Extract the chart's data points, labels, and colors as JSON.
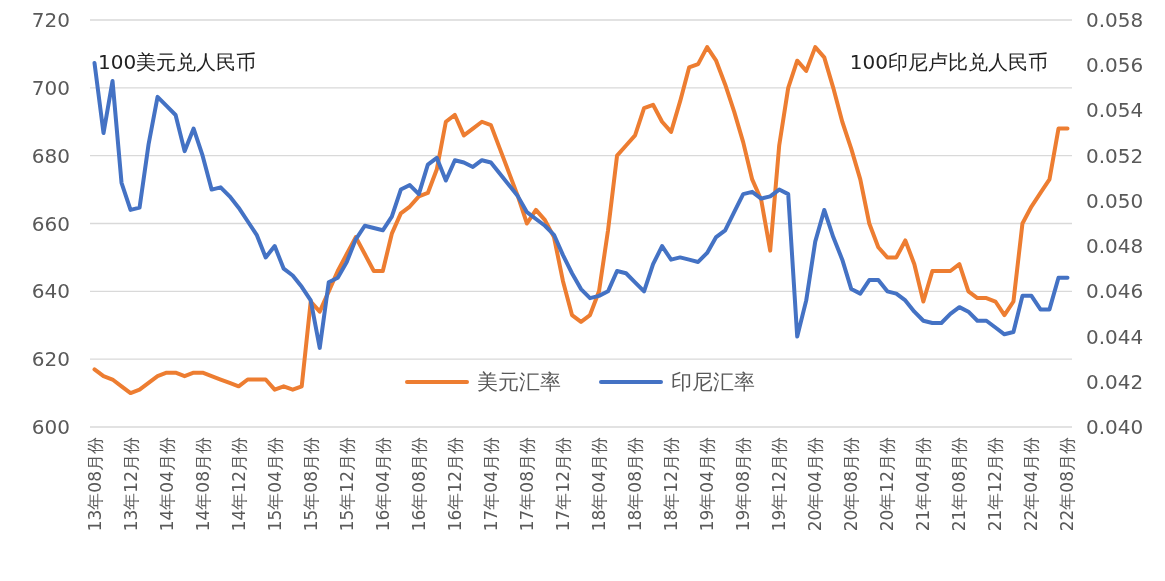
{
  "chart_data": {
    "type": "line",
    "categories": [
      "13年08月份",
      null,
      null,
      null,
      "13年12月份",
      null,
      null,
      null,
      "14年04月份",
      null,
      null,
      null,
      "14年08月份",
      null,
      null,
      null,
      "14年12月份",
      null,
      null,
      null,
      "15年04月份",
      null,
      null,
      null,
      "15年08月份",
      null,
      null,
      null,
      "15年12月份",
      null,
      null,
      null,
      "16年04月份",
      null,
      null,
      null,
      "16年08月份",
      null,
      null,
      null,
      "16年12月份",
      null,
      null,
      null,
      "17年04月份",
      null,
      null,
      null,
      "17年08月份",
      null,
      null,
      null,
      "17年12月份",
      null,
      null,
      null,
      "18年04月份",
      null,
      null,
      null,
      "18年08月份",
      null,
      null,
      null,
      "18年12月份",
      null,
      null,
      null,
      "19年04月份",
      null,
      null,
      null,
      "19年08月份",
      null,
      null,
      null,
      "19年12月份",
      null,
      null,
      null,
      "20年04月份",
      null,
      null,
      null,
      "20年08月份",
      null,
      null,
      null,
      "20年12月份",
      null,
      null,
      null,
      "21年04月份",
      null,
      null,
      null,
      "21年08月份",
      null,
      null,
      null,
      "21年12月份",
      null,
      null,
      null,
      "22年04月份",
      null,
      null,
      null,
      "22年08月份"
    ],
    "series": [
      {
        "name": "美元汇率",
        "color": "#ed7d31",
        "values": [
          617,
          615,
          614,
          612,
          610,
          611,
          613,
          615,
          616,
          616,
          615,
          616,
          616,
          615,
          614,
          613,
          612,
          614,
          614,
          614,
          611,
          612,
          611,
          612,
          637,
          634,
          640,
          646,
          651,
          656,
          651,
          646,
          646,
          657,
          663,
          665,
          668,
          669,
          676,
          690,
          692,
          686,
          688,
          690,
          689,
          682,
          675,
          668,
          660,
          664,
          661,
          656,
          643,
          633,
          631,
          633,
          640,
          658,
          680,
          683,
          686,
          694,
          695,
          690,
          687,
          696,
          706,
          707,
          712,
          708,
          701,
          693,
          684,
          673,
          667,
          652,
          683,
          700,
          708,
          705,
          712,
          709,
          700,
          690,
          682,
          673,
          660,
          653,
          650,
          650,
          655,
          648,
          637,
          646,
          646,
          646,
          648,
          640,
          638,
          638,
          637,
          633,
          637,
          660,
          665,
          669,
          673,
          688,
          688
        ]
      },
      {
        "name": "印尼汇率",
        "color": "#4472c4",
        "axis": "y2",
        "values": [
          0.0561,
          0.053,
          0.0553,
          0.0508,
          0.0496,
          0.0497,
          0.0525,
          0.0546,
          0.0542,
          0.0538,
          0.0522,
          0.0532,
          0.052,
          0.0505,
          0.0506,
          0.0502,
          0.0497,
          0.0491,
          0.0485,
          0.0475,
          0.048,
          0.047,
          0.0467,
          0.0462,
          0.0456,
          0.0435,
          0.0464,
          0.0466,
          0.0473,
          0.0483,
          0.0489,
          0.0488,
          0.0487,
          0.0493,
          0.0505,
          0.0507,
          0.0503,
          0.0516,
          0.0519,
          0.0509,
          0.0518,
          0.0517,
          0.0515,
          0.0518,
          0.0517,
          0.0512,
          0.0507,
          0.0502,
          0.0495,
          0.0492,
          0.0489,
          0.0485,
          0.0476,
          0.0468,
          0.0461,
          0.0457,
          0.0458,
          0.046,
          0.0469,
          0.0468,
          0.0464,
          0.046,
          0.0472,
          0.048,
          0.0474,
          0.0475,
          0.0474,
          0.0473,
          0.0477,
          0.0484,
          0.0487,
          0.0495,
          0.0503,
          0.0504,
          0.0501,
          0.0502,
          0.0505,
          0.0503,
          0.044,
          0.0456,
          0.0482,
          0.0496,
          0.0484,
          0.0474,
          0.0461,
          0.0459,
          0.0465,
          0.0465,
          0.046,
          0.0459,
          0.0456,
          0.0451,
          0.0447,
          0.0446,
          0.0446,
          0.045,
          0.0453,
          0.0451,
          0.0447,
          0.0447,
          0.0444,
          0.0441,
          0.0442,
          0.0458,
          0.0458,
          0.0452,
          0.0452,
          0.0466,
          0.0466
        ]
      }
    ],
    "ylabel": "100美元兑人民币",
    "y2label": "100印尼卢比兑人民币",
    "ylim": [
      600,
      720
    ],
    "yticks": [
      600,
      620,
      640,
      660,
      680,
      700,
      720
    ],
    "y2lim": [
      0.04,
      0.058
    ],
    "y2ticks": [
      {
        "value": 0.04,
        "label": "0.040"
      },
      {
        "value": 0.042,
        "label": "0.042"
      },
      {
        "value": 0.044,
        "label": "0.044"
      },
      {
        "value": 0.046,
        "label": "0.046"
      },
      {
        "value": 0.048,
        "label": "0.048"
      },
      {
        "value": 0.05,
        "label": "0.050"
      },
      {
        "value": 0.052,
        "label": "0.052"
      },
      {
        "value": 0.054,
        "label": "0.054"
      },
      {
        "value": 0.056,
        "label": "0.056"
      },
      {
        "value": 0.058,
        "label": "0.058"
      }
    ],
    "grid": "y",
    "legend": "bottom"
  }
}
